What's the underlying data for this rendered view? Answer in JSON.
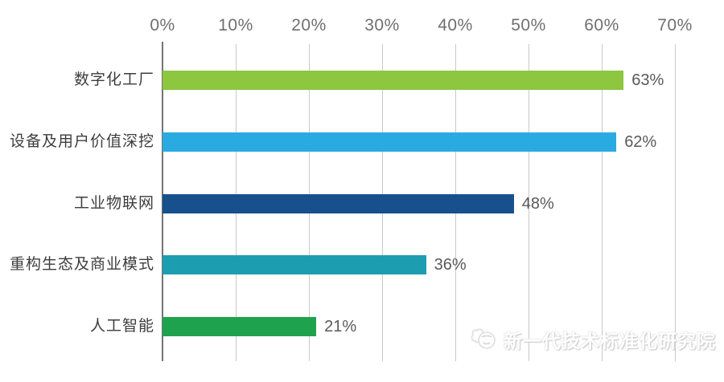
{
  "watermark": {
    "icon": "doodle-mascot-logo-icon",
    "text": "新一代技术标准化研究院"
  },
  "chart_data": {
    "type": "bar",
    "orientation": "horizontal",
    "title": "",
    "xlabel": "",
    "ylabel": "",
    "xlim": [
      0,
      70
    ],
    "grid": true,
    "legend": "none",
    "x_ticks": [
      "0%",
      "10%",
      "20%",
      "30%",
      "40%",
      "50%",
      "60%",
      "70%"
    ],
    "x_tick_values": [
      0,
      10,
      20,
      30,
      40,
      50,
      60,
      70
    ],
    "categories": [
      "数字化工厂",
      "设备及用户价值深挖",
      "工业物联网",
      "重构生态及商业模式",
      "人工智能"
    ],
    "values": [
      63,
      62,
      48,
      36,
      21
    ],
    "value_labels": [
      "63%",
      "62%",
      "48%",
      "36%",
      "21%"
    ],
    "bar_colors": [
      "#8DC63F",
      "#29ABE2",
      "#17508D",
      "#1C9EB0",
      "#1FA24D"
    ],
    "axis_color": "#737373",
    "gridline_color": "#C9C9C9",
    "label_color": "#3D3D3D",
    "value_label_color": "#595959"
  }
}
